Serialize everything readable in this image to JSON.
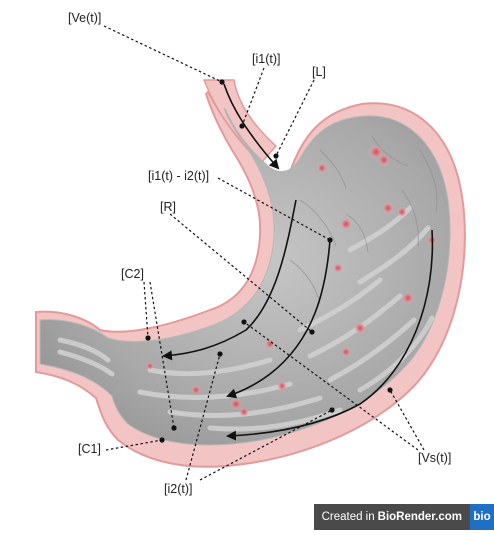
{
  "labels": {
    "ve": "[Ve(t)]",
    "i1": "[i1(t)]",
    "L": "[L]",
    "i1_minus_i2": "[i1(t) - i2(t)]",
    "R": "[R]",
    "C2": "[C2]",
    "C1": "[C1]",
    "i2": "[i2(t)]",
    "vs": "[Vs(t)]"
  },
  "badge": {
    "prefix": "Created in",
    "brand": "BioRender.com",
    "logo": "bio"
  },
  "colors": {
    "wall": "#f2c2c2",
    "wall_edge": "#e49a9a",
    "lumen": "#a9a9a9",
    "fold": "#cfcfcf",
    "spot": "#d9646a",
    "line": "#111111"
  }
}
